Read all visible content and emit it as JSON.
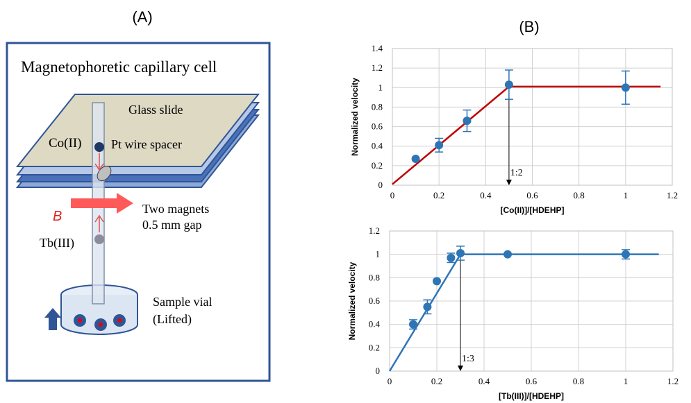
{
  "diagram": {
    "panel_label": "(A)",
    "title": "Magnetophoretic capillary cell",
    "glass": "Glass slide",
    "co": "Co(II)",
    "spacer": "Pt wire spacer",
    "field": "B",
    "magnets": "Two magnets",
    "gap": "0.5 mm gap",
    "tb": "Tb(III)",
    "vial": "Sample vial",
    "lifted": "(Lifted)"
  },
  "panel_b_label": "(B)",
  "chart_data": [
    {
      "type": "scatter",
      "xlabel": "[Co(II)]/[HDEHP]",
      "ylabel": "Normalized velocity",
      "x": [
        0.1,
        0.2,
        0.32,
        0.5,
        1
      ],
      "values": [
        0.27,
        0.41,
        0.66,
        1.03,
        1.0
      ],
      "errors": [
        null,
        0.07,
        0.11,
        0.15,
        0.17
      ],
      "color": "#2e75b6",
      "fit": {
        "x": [
          0,
          0.5,
          1.15
        ],
        "values": [
          0.01,
          1.01,
          1.01
        ],
        "color": "#c00000"
      },
      "annotation": {
        "text": "1:2",
        "x": 0.5,
        "y": 1.0
      },
      "xlim": [
        0,
        1.2
      ],
      "xticks": [
        0,
        0.2,
        0.4,
        0.6,
        0.8,
        1,
        1.2
      ],
      "ylim": [
        0,
        1.4
      ],
      "yticks": [
        0,
        0.2,
        0.4,
        0.6,
        0.8,
        1,
        1.2,
        1.4
      ],
      "grid": true
    },
    {
      "type": "scatter",
      "xlabel": "[Tb(III)]/[HDEHP]",
      "ylabel": "Normalized velocity",
      "x": [
        0.1,
        0.16,
        0.2,
        0.26,
        0.3,
        0.5,
        1
      ],
      "values": [
        0.4,
        0.55,
        0.77,
        0.97,
        1.01,
        1.0,
        1.0
      ],
      "errors": [
        0.04,
        0.06,
        null,
        0.04,
        0.06,
        null,
        0.04
      ],
      "color": "#2e75b6",
      "fit": {
        "x": [
          0,
          0.3,
          1.14
        ],
        "values": [
          0,
          1.0,
          1.0
        ],
        "color": "#2e75b6"
      },
      "annotation": {
        "text": "1:3",
        "x": 0.3,
        "y": 1.0
      },
      "xlim": [
        0,
        1.2
      ],
      "xticks": [
        0,
        0.2,
        0.4,
        0.6,
        0.8,
        1,
        1.2
      ],
      "ylim": [
        0,
        1.2
      ],
      "yticks": [
        0,
        0.2,
        0.4,
        0.6,
        0.8,
        1,
        1.2
      ],
      "grid": true
    }
  ]
}
